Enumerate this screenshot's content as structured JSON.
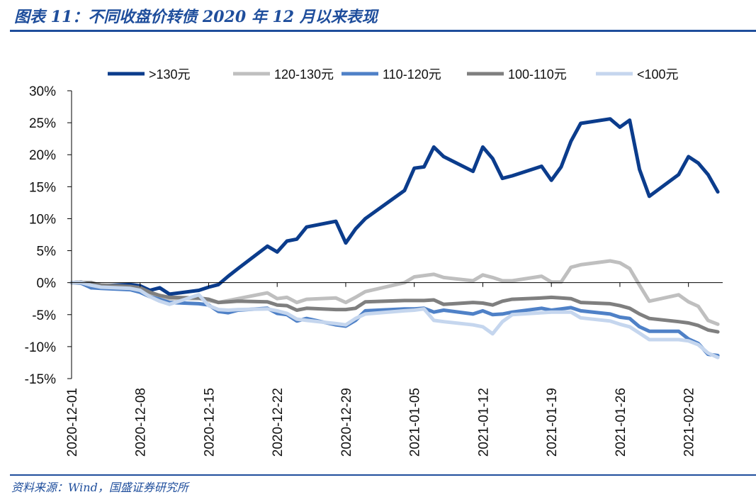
{
  "title": "图表 11：不同收盘价转债 2020 年 12 月以来表现",
  "source": "资料来源：Wind，国盛证券研究所",
  "chart_data": {
    "type": "line",
    "title": "",
    "xlabel": "",
    "ylabel": "",
    "ylim": [
      -15,
      30
    ],
    "yticks": [
      "30%",
      "25%",
      "20%",
      "15%",
      "10%",
      "5%",
      "0%",
      "-5%",
      "-10%",
      "-15%"
    ],
    "xticks": [
      "2020-12-01",
      "2020-12-08",
      "2020-12-15",
      "2020-12-22",
      "2020-12-29",
      "2021-01-05",
      "2021-01-12",
      "2021-01-19",
      "2021-01-26",
      "2021-02-02"
    ],
    "legend_position": "top",
    "grid": false,
    "x": [
      "2020-12-01",
      "2020-12-02",
      "2020-12-03",
      "2020-12-04",
      "2020-12-07",
      "2020-12-08",
      "2020-12-09",
      "2020-12-10",
      "2020-12-11",
      "2020-12-14",
      "2020-12-15",
      "2020-12-16",
      "2020-12-17",
      "2020-12-18",
      "2020-12-21",
      "2020-12-22",
      "2020-12-23",
      "2020-12-24",
      "2020-12-25",
      "2020-12-28",
      "2020-12-29",
      "2020-12-30",
      "2020-12-31",
      "2021-01-04",
      "2021-01-05",
      "2021-01-06",
      "2021-01-07",
      "2021-01-08",
      "2021-01-11",
      "2021-01-12",
      "2021-01-13",
      "2021-01-14",
      "2021-01-15",
      "2021-01-18",
      "2021-01-19",
      "2021-01-20",
      "2021-01-21",
      "2021-01-22",
      "2021-01-25",
      "2021-01-26",
      "2021-01-27",
      "2021-01-28",
      "2021-01-29",
      "2021-02-01",
      "2021-02-02",
      "2021-02-03",
      "2021-02-04",
      "2021-02-05"
    ],
    "series": [
      {
        "name": ">130元",
        "color": "#0b3c8c",
        "values": [
          0,
          0.1,
          -0.8,
          -0.5,
          -0.3,
          -0.5,
          -1.2,
          -0.8,
          -1.8,
          -1.2,
          -0.7,
          -0.3,
          1.0,
          2.2,
          5.7,
          4.8,
          6.5,
          6.8,
          8.7,
          9.6,
          6.2,
          8.4,
          10.0,
          14.4,
          17.9,
          18.1,
          21.2,
          19.7,
          17.4,
          21.2,
          19.4,
          16.3,
          16.7,
          18.2,
          16.0,
          18.1,
          22.1,
          24.9,
          25.6,
          24.3,
          25.4,
          17.7,
          13.5,
          16.9,
          19.7,
          18.7,
          16.9,
          14.2
        ]
      },
      {
        "name": "120-130元",
        "color": "#bfbfbf",
        "values": [
          0,
          0.1,
          -0.6,
          -0.6,
          -0.7,
          -1.0,
          -1.8,
          -2.5,
          -2.5,
          -2.5,
          -2.8,
          -3.1,
          -2.8,
          -2.5,
          -1.6,
          -2.5,
          -2.3,
          -3.1,
          -2.6,
          -2.4,
          -3.1,
          -2.3,
          -1.4,
          0.0,
          0.9,
          1.1,
          1.3,
          0.8,
          0.3,
          1.2,
          0.8,
          0.3,
          0.3,
          1.0,
          0.1,
          0.1,
          2.4,
          2.8,
          3.4,
          3.1,
          2.2,
          -0.4,
          -2.9,
          -1.9,
          -3.0,
          -3.7,
          -5.9,
          -6.5
        ]
      },
      {
        "name": "110-120元",
        "color": "#4f81c7",
        "values": [
          0,
          -0.1,
          -0.8,
          -0.9,
          -1.1,
          -1.5,
          -2.2,
          -2.6,
          -3.1,
          -3.3,
          -3.5,
          -4.5,
          -4.7,
          -4.3,
          -4.0,
          -4.8,
          -5.0,
          -6.0,
          -5.6,
          -6.6,
          -6.8,
          -5.9,
          -4.4,
          -4.1,
          -4.1,
          -4.0,
          -4.6,
          -4.3,
          -4.9,
          -4.4,
          -5.0,
          -4.9,
          -4.6,
          -4.0,
          -4.3,
          -4.1,
          -3.9,
          -4.4,
          -4.9,
          -5.4,
          -5.6,
          -6.9,
          -7.6,
          -7.6,
          -8.8,
          -9.5,
          -11.2,
          -11.4
        ]
      },
      {
        "name": "100-110元",
        "color": "#7f7f7f",
        "values": [
          0,
          0.0,
          0.0,
          -0.4,
          -0.6,
          -0.8,
          -1.5,
          -2.0,
          -2.3,
          -2.4,
          -2.6,
          -3.1,
          -3.0,
          -2.9,
          -3.0,
          -3.5,
          -3.6,
          -4.3,
          -4.0,
          -4.2,
          -4.2,
          -4.0,
          -3.0,
          -2.8,
          -2.8,
          -2.8,
          -2.7,
          -3.4,
          -3.1,
          -3.2,
          -3.5,
          -2.9,
          -2.6,
          -2.4,
          -2.3,
          -2.4,
          -2.5,
          -3.1,
          -3.3,
          -3.6,
          -4.0,
          -4.9,
          -5.6,
          -6.1,
          -6.3,
          -6.7,
          -7.4,
          -7.7
        ]
      },
      {
        "name": "<100元",
        "color": "#c5d6ee",
        "values": [
          0,
          0.0,
          -0.4,
          -0.7,
          -0.9,
          -1.2,
          -2.2,
          -2.9,
          -3.4,
          -1.9,
          -3.6,
          -4.2,
          -4.3,
          -4.2,
          -4.1,
          -4.4,
          -4.8,
          -5.7,
          -5.9,
          -6.4,
          -6.6,
          -5.6,
          -4.9,
          -4.4,
          -4.3,
          -4.1,
          -5.9,
          -6.1,
          -6.6,
          -6.9,
          -8.0,
          -6.1,
          -5.0,
          -4.7,
          -4.6,
          -4.6,
          -4.6,
          -5.5,
          -6.0,
          -6.5,
          -6.9,
          -7.9,
          -8.9,
          -8.9,
          -9.1,
          -9.7,
          -11.0,
          -11.7
        ]
      }
    ]
  }
}
